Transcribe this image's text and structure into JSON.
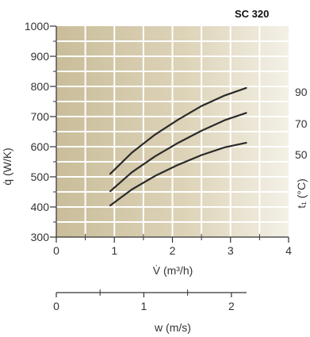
{
  "chart_data": {
    "type": "line",
    "title": "SC 320",
    "xlabel": "V̇ (m³/h)",
    "ylabel": "q̇ (W/K)",
    "y2label": "t₁ (°C)",
    "x2label": "w (m/s)",
    "xlim": [
      0,
      4
    ],
    "ylim": [
      300,
      1000
    ],
    "x_ticks": [
      "0",
      "1",
      "2",
      "3",
      "4"
    ],
    "y_ticks": [
      "300",
      "400",
      "500",
      "600",
      "700",
      "800",
      "900",
      "1000"
    ],
    "x2_ticks": [
      {
        "label": "0",
        "v": 0
      },
      {
        "label": "1",
        "v": 1.5
      },
      {
        "label": "2",
        "v": 3
      }
    ],
    "grid": true,
    "series": [
      {
        "name": "90",
        "x": [
          0.93,
          1.3,
          1.7,
          2.1,
          2.5,
          2.9,
          3.27
        ],
        "y": [
          510,
          580,
          640,
          690,
          735,
          770,
          795
        ]
      },
      {
        "name": "70",
        "x": [
          0.93,
          1.3,
          1.7,
          2.1,
          2.5,
          2.9,
          3.27
        ],
        "y": [
          452,
          515,
          568,
          613,
          653,
          688,
          712
        ]
      },
      {
        "name": "50",
        "x": [
          0.93,
          1.3,
          1.7,
          2.1,
          2.5,
          2.9,
          3.27
        ],
        "y": [
          405,
          458,
          503,
          540,
          572,
          598,
          613
        ]
      }
    ]
  }
}
